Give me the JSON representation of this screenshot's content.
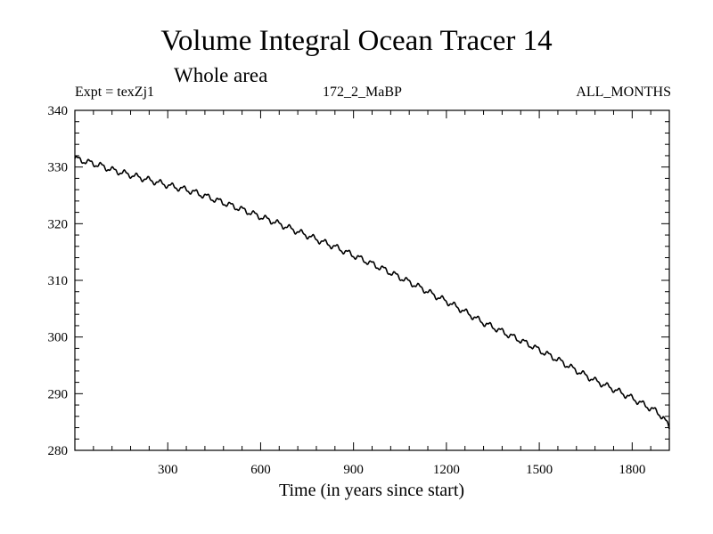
{
  "chart_data": {
    "type": "line",
    "title": "Volume Integral Ocean Tracer 14",
    "subtitle": "Whole area",
    "header_left": "Expt = texZj1",
    "header_center": "172_2_MaBP",
    "header_right": "ALL_MONTHS",
    "xlabel": "Time (in years since start)",
    "ylabel": "",
    "xlim": [
      0,
      1920
    ],
    "ylim": [
      280,
      340
    ],
    "xticks": [
      300,
      600,
      900,
      1200,
      1500,
      1800
    ],
    "yticks": [
      280,
      290,
      300,
      310,
      320,
      330,
      340
    ],
    "series": [
      {
        "x": [
          0,
          40,
          80,
          120,
          160,
          200,
          240,
          280,
          320,
          360,
          400,
          440,
          480,
          520,
          560,
          600,
          640,
          680,
          720,
          760,
          800,
          840,
          880,
          920,
          960,
          1000,
          1040,
          1080,
          1120,
          1160,
          1200,
          1240,
          1280,
          1320,
          1360,
          1400,
          1440,
          1480,
          1520,
          1560,
          1600,
          1640,
          1680,
          1720,
          1760,
          1800,
          1840,
          1880,
          1900,
          1920
        ],
        "values": [
          331.5,
          330.9,
          330.3,
          329.5,
          328.9,
          328.3,
          327.7,
          327.1,
          326.5,
          326.0,
          325.3,
          324.5,
          323.7,
          322.9,
          322.1,
          321.2,
          320.4,
          319.5,
          318.6,
          317.7,
          316.8,
          315.9,
          314.9,
          313.9,
          312.9,
          311.9,
          310.8,
          309.7,
          308.6,
          307.4,
          306.3,
          305.1,
          303.8,
          302.5,
          301.5,
          300.4,
          299.4,
          298.3,
          297.1,
          296.0,
          294.7,
          293.5,
          292.3,
          291.3,
          290.3,
          289.2,
          288.0,
          286.8,
          285.8,
          284.0
        ]
      }
    ]
  }
}
